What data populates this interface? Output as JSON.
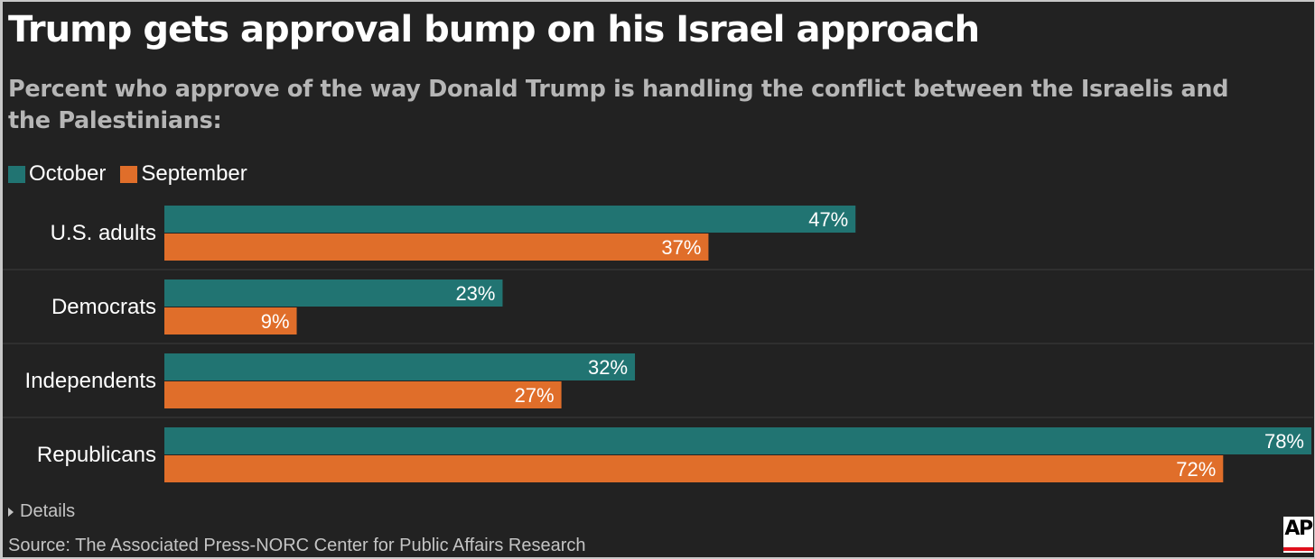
{
  "title": "Trump gets approval bump on his Israel approach",
  "subtitle": "Percent who approve of the way Donald Trump is handling the conflict between the Israelis and the Palestinians:",
  "legend": {
    "items": [
      {
        "label": "October",
        "color": "#217472"
      },
      {
        "label": "September",
        "color": "#e06e2a"
      }
    ]
  },
  "chart_data": {
    "type": "bar",
    "orientation": "horizontal",
    "categories": [
      "U.S. adults",
      "Democrats",
      "Independents",
      "Republicans"
    ],
    "series": [
      {
        "name": "October",
        "color": "#217472",
        "values": [
          47,
          23,
          32,
          78
        ],
        "labels": [
          "47%",
          "23%",
          "32%",
          "78%"
        ]
      },
      {
        "name": "September",
        "color": "#e06e2a",
        "values": [
          37,
          9,
          27,
          72
        ],
        "labels": [
          "37%",
          "9%",
          "27%",
          "72%"
        ]
      }
    ],
    "xlim": [
      0,
      78
    ],
    "grid": false,
    "title": "Trump gets approval bump on his Israel approach",
    "legend_position": "top-left"
  },
  "details": {
    "label": "Details"
  },
  "source": "Source: The Associated Press-NORC Center for Public Affairs Research",
  "logo": {
    "text": "AP",
    "accent_color": "#e0101c",
    "icon": "ap-logo-icon"
  },
  "colors": {
    "background": "#222222",
    "separator": "#3c3c3c"
  }
}
